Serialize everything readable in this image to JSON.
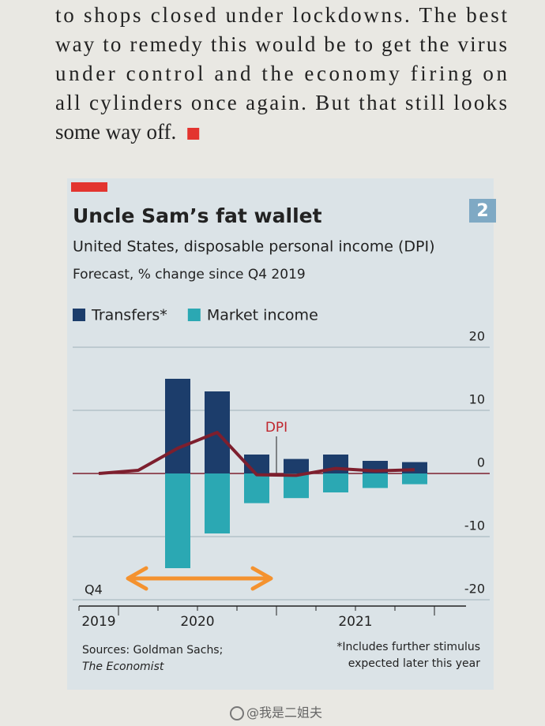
{
  "article": {
    "lines": [
      "to shops closed under lockdowns. The best",
      "way to remedy this would be to get the virus",
      "under control and the economy firing on",
      "all cylinders once again. But that still looks",
      "some way off."
    ]
  },
  "chart_data": {
    "type": "bar",
    "badge": "2",
    "title": "Uncle Sam’s fat wallet",
    "subtitle": "United States, disposable personal income (DPI)",
    "subtitle2": "Forecast, % change since Q4 2019",
    "categories": [
      "Q4",
      null,
      null,
      null,
      null,
      null,
      null,
      null,
      null
    ],
    "x_groups": [
      "2019",
      "2020",
      "2021"
    ],
    "series": [
      {
        "name": "Transfers*",
        "color": "#1c3d6b",
        "values": [
          null,
          null,
          15,
          13,
          3,
          2.3,
          3,
          2,
          1.8
        ]
      },
      {
        "name": "Market income",
        "color": "#2ba8b3",
        "values": [
          null,
          null,
          -15,
          -9.5,
          -4.7,
          -3.9,
          -3,
          -2.3,
          -1.7
        ]
      },
      {
        "name": "DPI",
        "type": "line",
        "color": "#7d1f2e",
        "values": [
          0,
          0.5,
          4,
          6.5,
          -0.2,
          -0.3,
          0.8,
          0.4,
          0.6
        ]
      }
    ],
    "ylim": [
      -20,
      20
    ],
    "yticks": [
      -20,
      -10,
      0,
      10,
      20
    ],
    "grid": true,
    "sources": [
      "Sources: Goldman Sachs;",
      "The Economist"
    ],
    "footnote": [
      "*Includes further stimulus",
      "expected later this year"
    ]
  },
  "watermark": "@我是二姐夫"
}
